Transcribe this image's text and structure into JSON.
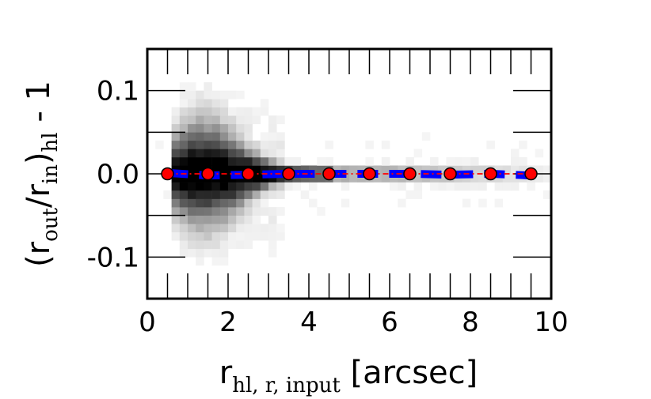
{
  "chart_data": {
    "type": "scatter",
    "title": "",
    "xlabel": {
      "main": "r",
      "subscript": "hl, r, input",
      "suffix": " [arcsec]"
    },
    "ylabel": {
      "open": "(r",
      "sub1": "out",
      "mid": "/r",
      "sub2": "in",
      "close": ")",
      "sub3": "hl",
      "suffix": " - 1"
    },
    "xlim": [
      0,
      10
    ],
    "ylim": [
      -0.15,
      0.15
    ],
    "xticks": [
      0,
      2,
      4,
      6,
      8,
      10
    ],
    "xtick_labels": [
      "0",
      "2",
      "4",
      "6",
      "8",
      "10"
    ],
    "yticks": [
      -0.1,
      0.0,
      0.1
    ],
    "ytick_labels": [
      "-0.1",
      "0.0",
      "0.1"
    ],
    "grid": false,
    "legend": null,
    "series": [
      {
        "style": "red dash-dot line with red circle markers",
        "color": "#ff0000",
        "x": [
          0.5,
          1.5,
          2.5,
          3.5,
          4.5,
          5.5,
          6.5,
          7.5,
          8.5,
          9.5
        ],
        "y": [
          0.0,
          0.0,
          0.0,
          0.0,
          0.0,
          0.0,
          0.0,
          0.0,
          0.0,
          0.0
        ]
      },
      {
        "style": "thick blue dashed line",
        "color": "#0000ff",
        "x": [
          0.5,
          1.5,
          2.5,
          3.5,
          4.5,
          5.5,
          6.5,
          7.5,
          8.5,
          9.5
        ],
        "y": [
          0.001,
          -0.002,
          -0.001,
          0.0,
          0.0,
          0.0,
          0.0,
          -0.001,
          0.0,
          -0.002
        ]
      }
    ],
    "density_background": "grayscale 2D histogram, darkest along y=0 for x between 0.8 and 4.5, broad scatter up to about +0.1 near x=1-2"
  }
}
